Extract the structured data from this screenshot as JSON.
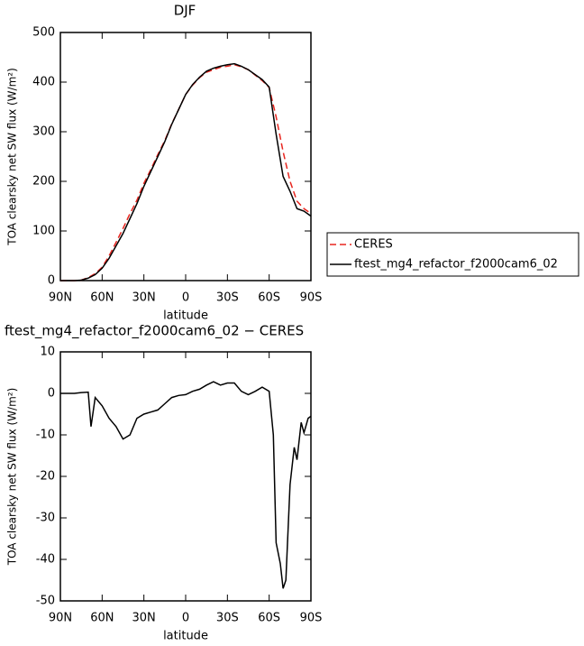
{
  "chart_data": [
    {
      "type": "line",
      "title": "DJF",
      "xlabel": "latitude",
      "ylabel": "TOA clearsky net SW flux (W/m²)",
      "x": [
        90,
        85,
        80,
        75,
        70,
        65,
        60,
        55,
        50,
        45,
        40,
        35,
        30,
        25,
        20,
        15,
        10,
        5,
        0,
        -5,
        -10,
        -15,
        -20,
        -25,
        -30,
        -35,
        -40,
        -45,
        -50,
        -55,
        -60,
        -65,
        -70,
        -75,
        -80,
        -85,
        -90
      ],
      "xlim": [
        90,
        -90
      ],
      "xticks": [
        {
          "value": 90,
          "label": "90N"
        },
        {
          "value": 60,
          "label": "60N"
        },
        {
          "value": 30,
          "label": "30N"
        },
        0,
        {
          "value": -30,
          "label": "30S"
        },
        {
          "value": -60,
          "label": "60S"
        },
        {
          "value": -90,
          "label": "90S"
        }
      ],
      "ylim": [
        0,
        500
      ],
      "yticks": [
        0,
        100,
        200,
        300,
        400,
        500
      ],
      "legend": "right",
      "series": [
        {
          "name": "CERES",
          "color": "#e8261f",
          "dash": true,
          "values": [
            0,
            0,
            0,
            1,
            6,
            14,
            27,
            50,
            77,
            105,
            135,
            162,
            196,
            224,
            254,
            282,
            316,
            345,
            375,
            394,
            409,
            420,
            425,
            430,
            432,
            435,
            431,
            425,
            414,
            403,
            389,
            330,
            260,
            200,
            160,
            145,
            135
          ]
        },
        {
          "name": "ftest_mg4_refactor_f2000cam6_02",
          "color": "#000000",
          "dash": false,
          "values": [
            0,
            0,
            0,
            1,
            5,
            12,
            25,
            45,
            70,
            95,
            125,
            155,
            190,
            220,
            250,
            280,
            315,
            345,
            375,
            395,
            410,
            422,
            428,
            432,
            435,
            437,
            432,
            425,
            415,
            405,
            390,
            295,
            210,
            180,
            145,
            140,
            130
          ]
        }
      ]
    },
    {
      "type": "line",
      "title": "ftest_mg4_refactor_f2000cam6_02 − CERES",
      "xlabel": "latitude",
      "ylabel": "TOA clearsky net SW flux (W/m²)",
      "x": [
        90,
        85,
        80,
        75,
        70,
        68,
        65,
        60,
        55,
        50,
        45,
        40,
        35,
        30,
        25,
        20,
        15,
        10,
        5,
        0,
        -5,
        -10,
        -15,
        -20,
        -25,
        -30,
        -35,
        -40,
        -45,
        -50,
        -55,
        -60,
        -63,
        -65,
        -68,
        -70,
        -72,
        -75,
        -78,
        -80,
        -83,
        -85,
        -88,
        -90
      ],
      "xlim": [
        90,
        -90
      ],
      "xticks": [
        {
          "value": 90,
          "label": "90N"
        },
        {
          "value": 60,
          "label": "60N"
        },
        {
          "value": 30,
          "label": "30N"
        },
        0,
        {
          "value": -30,
          "label": "30S"
        },
        {
          "value": -60,
          "label": "60S"
        },
        {
          "value": -90,
          "label": "90S"
        }
      ],
      "ylim": [
        -50,
        10
      ],
      "yticks": [
        10,
        0,
        -10,
        -20,
        -30,
        -40,
        -50
      ],
      "series": [
        {
          "color": "#000000",
          "dash": false,
          "values": [
            0,
            0,
            0,
            0.2,
            0.3,
            -8,
            -1,
            -3,
            -6,
            -8,
            -11,
            -10,
            -6,
            -5,
            -4.5,
            -4,
            -2.5,
            -1,
            -0.5,
            -0.3,
            0.5,
            1,
            2,
            2.8,
            2,
            2.5,
            2.5,
            0.5,
            -0.3,
            0.5,
            1.5,
            0.5,
            -10,
            -36,
            -41,
            -47,
            -45,
            -22,
            -13,
            -16,
            -7,
            -9.5,
            -6,
            -5.5
          ]
        }
      ]
    }
  ]
}
